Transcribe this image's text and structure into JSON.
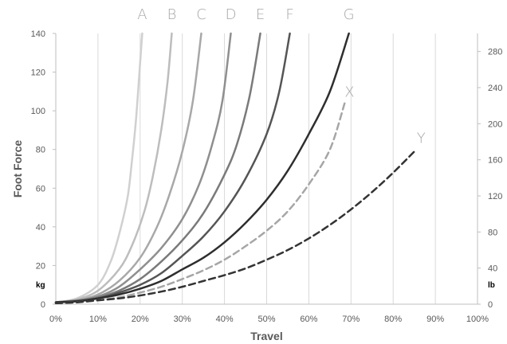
{
  "chart_data": {
    "type": "line",
    "title": "",
    "xlabel": "Travel",
    "ylabel": "Foot Force",
    "y_unit_left": "kg",
    "y_unit_right": "lb",
    "xlim": [
      0,
      100
    ],
    "ylim": [
      0,
      140
    ],
    "y2lim": [
      0,
      300
    ],
    "x_ticks": [
      "0%",
      "10%",
      "20%",
      "30%",
      "40%",
      "50%",
      "60%",
      "70%",
      "80%",
      "90%",
      "100%"
    ],
    "y_ticks": [
      "0",
      "20",
      "40",
      "60",
      "80",
      "100",
      "120",
      "140"
    ],
    "y2_ticks": [
      "0",
      "40",
      "80",
      "120",
      "160",
      "200",
      "240",
      "280"
    ],
    "grid": "vertical",
    "series": [
      {
        "name": "A",
        "color": "#d0d0d0",
        "dash": false,
        "x": [
          0,
          5,
          10,
          13,
          15,
          17,
          18,
          19,
          20,
          20.5
        ],
        "y": [
          1,
          3,
          10,
          22,
          36,
          55,
          73,
          95,
          125,
          140
        ]
      },
      {
        "name": "B",
        "color": "#bdbdbd",
        "dash": false,
        "x": [
          0,
          5,
          10,
          15,
          18,
          21,
          23,
          25,
          26.5,
          27.5
        ],
        "y": [
          1,
          2.5,
          7,
          18,
          30,
          48,
          66,
          90,
          115,
          140
        ]
      },
      {
        "name": "C",
        "color": "#a8a8a8",
        "dash": false,
        "x": [
          0,
          5,
          10,
          15,
          20,
          24,
          27,
          30,
          32.5,
          34.5
        ],
        "y": [
          1,
          2,
          5,
          12,
          24,
          40,
          57,
          79,
          105,
          140
        ]
      },
      {
        "name": "D",
        "color": "#8f8f8f",
        "dash": false,
        "x": [
          0,
          5,
          10,
          15,
          20,
          25,
          30,
          34,
          37,
          39.5,
          41.5
        ],
        "y": [
          1,
          2,
          4,
          9,
          18,
          29,
          44,
          62,
          82,
          105,
          140
        ]
      },
      {
        "name": "E",
        "color": "#7a7a7a",
        "dash": false,
        "x": [
          0,
          5,
          10,
          15,
          20,
          25,
          30,
          35,
          40,
          43,
          46,
          48.5
        ],
        "y": [
          1,
          1.8,
          3.5,
          7,
          13,
          22,
          33,
          47,
          67,
          83,
          108,
          140
        ]
      },
      {
        "name": "F",
        "color": "#555555",
        "dash": false,
        "x": [
          0,
          5,
          10,
          15,
          20,
          25,
          30,
          35,
          40,
          45,
          50,
          53,
          55.5
        ],
        "y": [
          1,
          1.6,
          3,
          6,
          10,
          16,
          25,
          35,
          48,
          65,
          88,
          110,
          140
        ]
      },
      {
        "name": "G",
        "color": "#2e2e2e",
        "dash": false,
        "x": [
          0,
          5,
          10,
          15,
          20,
          25,
          30,
          35,
          40,
          45,
          50,
          55,
          60,
          65,
          69.5
        ],
        "y": [
          1,
          1.5,
          3,
          5,
          8,
          12,
          18,
          24,
          32,
          42,
          54,
          69,
          88,
          110,
          140
        ]
      },
      {
        "name": "X",
        "color": "#a6a6a6",
        "dash": true,
        "x": [
          0,
          5,
          10,
          15,
          20,
          25,
          30,
          35,
          40,
          45,
          50,
          55,
          60,
          65,
          68.5
        ],
        "y": [
          0.5,
          1,
          2,
          3.5,
          6,
          9,
          13,
          17.5,
          23,
          30,
          38,
          48,
          62,
          80,
          104
        ]
      },
      {
        "name": "Y",
        "color": "#333333",
        "dash": true,
        "x": [
          0,
          5,
          10,
          15,
          20,
          25,
          30,
          35,
          40,
          45,
          50,
          55,
          60,
          65,
          70,
          75,
          80,
          85.5
        ],
        "y": [
          0.5,
          1,
          2,
          3,
          4.5,
          6.5,
          9,
          12,
          15,
          18.5,
          23,
          28,
          34,
          41,
          49,
          58,
          68,
          80
        ]
      }
    ]
  }
}
